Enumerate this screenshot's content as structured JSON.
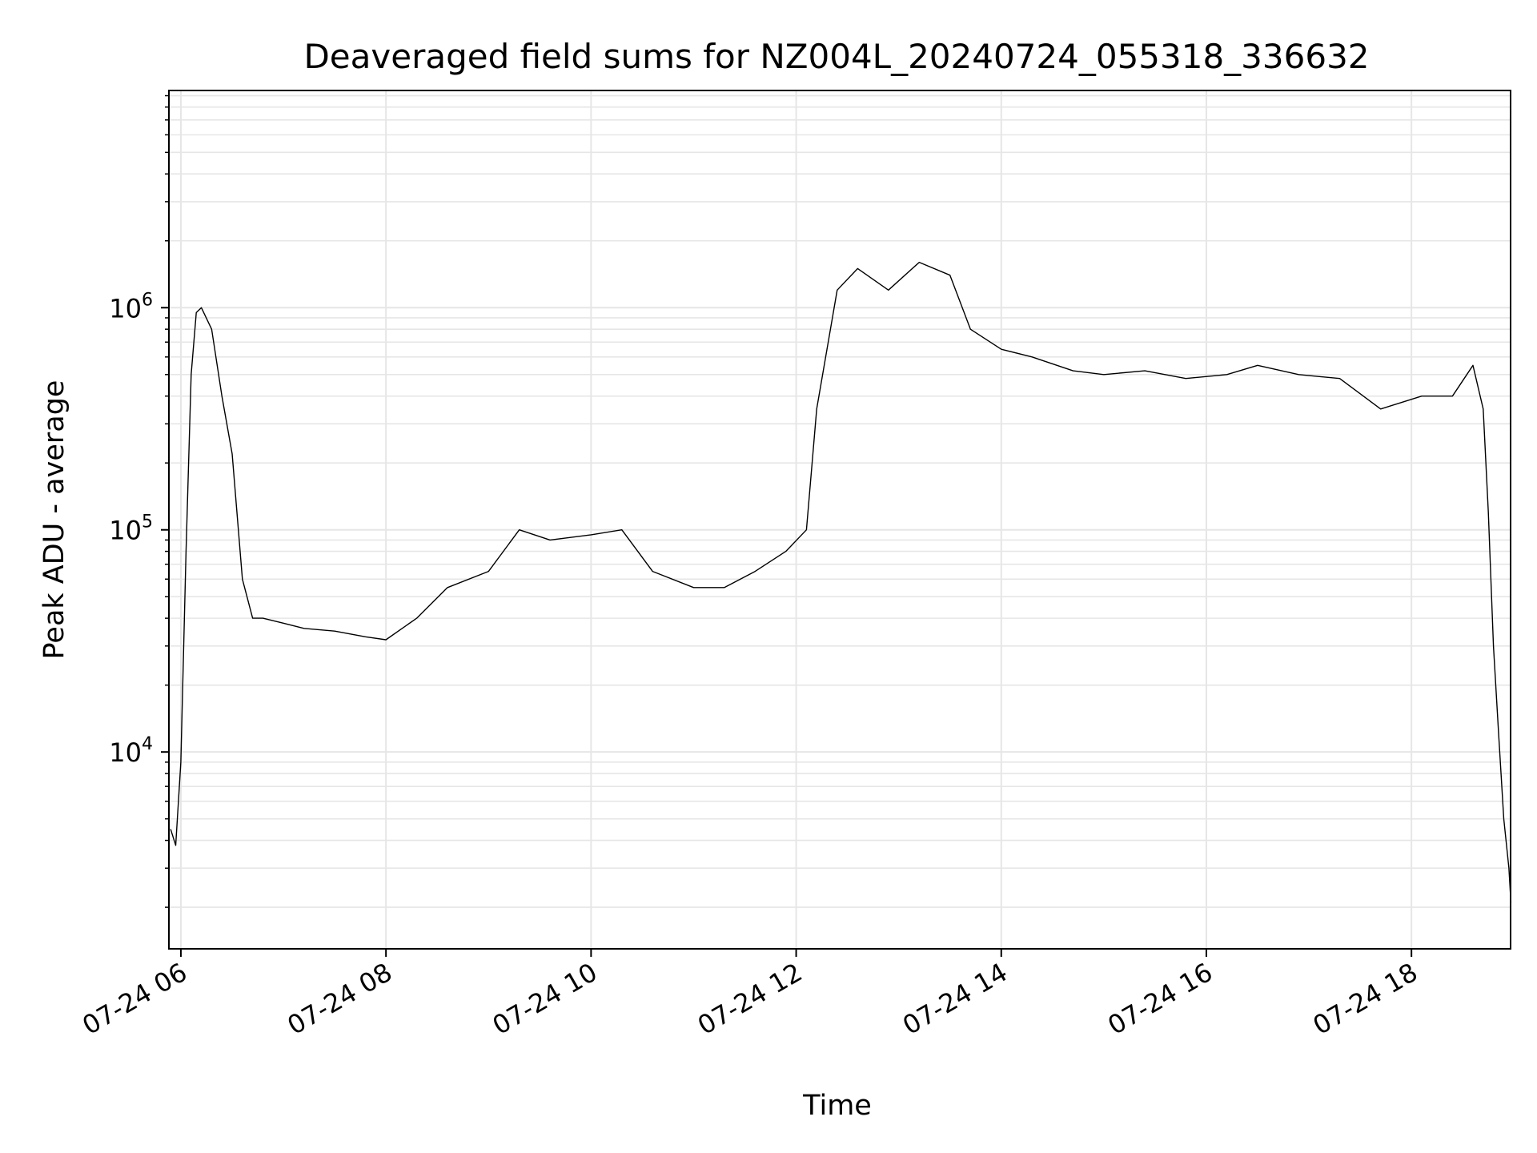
{
  "chart_data": {
    "type": "line",
    "title": "Deaveraged field sums for NZ004L_20240724_055318_336632",
    "xlabel": "Time",
    "ylabel": "Peak ADU - average",
    "yscale": "log",
    "grid": true,
    "line_color": "#000000",
    "grid_color": "#e6e6e6",
    "xlim": [
      "07-24 05:53",
      "07-24 18:58"
    ],
    "ylim": [
      1300,
      9500000
    ],
    "x_ticks": [
      {
        "label": "07-24 06",
        "hour": 6
      },
      {
        "label": "07-24 08",
        "hour": 8
      },
      {
        "label": "07-24 10",
        "hour": 10
      },
      {
        "label": "07-24 12",
        "hour": 12
      },
      {
        "label": "07-24 14",
        "hour": 14
      },
      {
        "label": "07-24 16",
        "hour": 16
      },
      {
        "label": "07-24 18",
        "hour": 18
      }
    ],
    "y_ticks": [
      {
        "base": "10",
        "exp": "4",
        "value": 10000
      },
      {
        "base": "10",
        "exp": "5",
        "value": 100000
      },
      {
        "base": "10",
        "exp": "6",
        "value": 1000000
      }
    ],
    "series": [
      {
        "x_hours": [
          5.9,
          5.95,
          6.0,
          6.05,
          6.1,
          6.15,
          6.2,
          6.3,
          6.4,
          6.5,
          6.6,
          6.7,
          6.8,
          7.0,
          7.2,
          7.5,
          7.8,
          8.0,
          8.3,
          8.6,
          9.0,
          9.3,
          9.6,
          10.0,
          10.3,
          10.6,
          11.0,
          11.3,
          11.6,
          11.9,
          12.1,
          12.2,
          12.4,
          12.6,
          12.9,
          13.2,
          13.5,
          13.7,
          14.0,
          14.3,
          14.7,
          15.0,
          15.4,
          15.8,
          16.2,
          16.5,
          16.9,
          17.3,
          17.7,
          18.1,
          18.4,
          18.6,
          18.7,
          18.75,
          18.8,
          18.85,
          18.9,
          18.95,
          18.97
        ],
        "y_values": [
          4500,
          3800,
          9000,
          80000,
          500000,
          950000,
          1000000,
          800000,
          400000,
          220000,
          60000,
          40000,
          40000,
          38000,
          36000,
          35000,
          33000,
          32000,
          40000,
          55000,
          65000,
          100000,
          90000,
          95000,
          100000,
          65000,
          55000,
          55000,
          65000,
          80000,
          100000,
          350000,
          1200000,
          1500000,
          1200000,
          1600000,
          1400000,
          800000,
          650000,
          600000,
          520000,
          500000,
          520000,
          480000,
          500000,
          550000,
          500000,
          480000,
          350000,
          400000,
          400000,
          550000,
          350000,
          120000,
          30000,
          12000,
          5000,
          3000,
          2100
        ]
      }
    ]
  }
}
